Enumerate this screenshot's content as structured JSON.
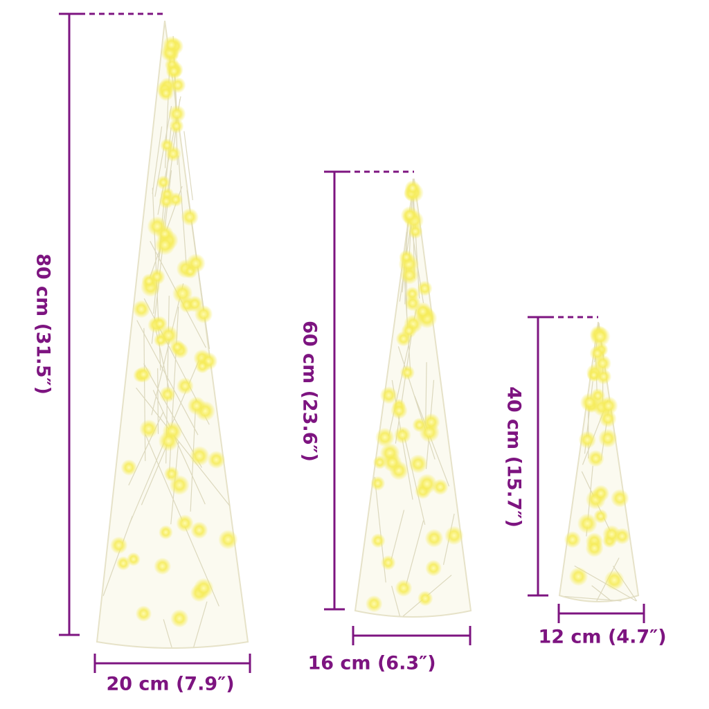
{
  "accent_color": "#7d1480",
  "products": [
    {
      "name": "large-cone",
      "height_label": "80 cm (31.5″)",
      "width_label": "20 cm (7.9″)"
    },
    {
      "name": "medium-cone",
      "height_label": "60 cm (23.6″)",
      "width_label": "16 cm (6.3″)"
    },
    {
      "name": "small-cone",
      "height_label": "40 cm (15.7″)",
      "width_label": "12 cm (4.7″)"
    }
  ]
}
